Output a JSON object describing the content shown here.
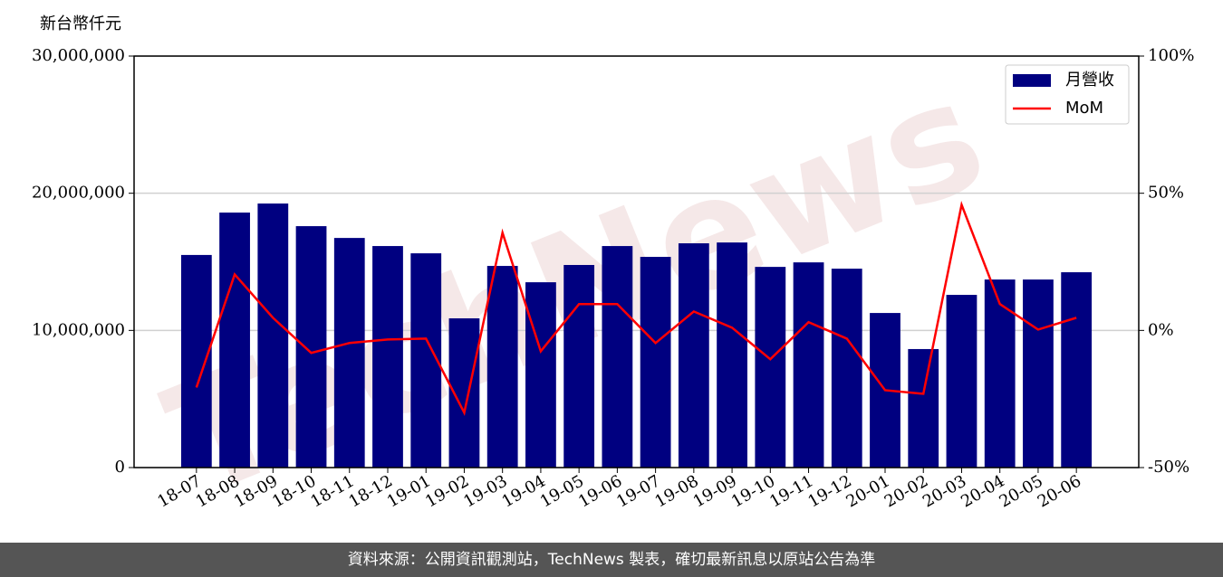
{
  "chart_data": {
    "type": "bar_line",
    "y_axis_label": "新台幣仟元",
    "watermark": "TechNews",
    "footer": "資料來源：公開資訊觀測站，TechNews 製表，確切最新訊息以原站公告為準",
    "categories": [
      "18-07",
      "18-08",
      "18-09",
      "18-10",
      "18-11",
      "18-12",
      "19-01",
      "19-02",
      "19-03",
      "19-04",
      "19-05",
      "19-06",
      "19-07",
      "19-08",
      "19-09",
      "19-10",
      "19-11",
      "19-12",
      "20-01",
      "20-02",
      "20-03",
      "20-04",
      "20-05",
      "20-06"
    ],
    "series": [
      {
        "name": "月營收",
        "type": "bar",
        "color": "#000080",
        "values": [
          15500000,
          18590000,
          19250000,
          17600000,
          16740000,
          16150000,
          15620000,
          10880000,
          14700000,
          13510000,
          14770000,
          16150000,
          15360000,
          16350000,
          16410000,
          14630000,
          14960000,
          14500000,
          11270000,
          8640000,
          12590000,
          13710000,
          13710000,
          14240000
        ]
      },
      {
        "name": "MoM",
        "type": "line",
        "axis": "y2",
        "color": "#ff0000",
        "values": [
          -20.8,
          20.4,
          4.6,
          -8.2,
          -4.6,
          -3.3,
          -3.0,
          -30.0,
          35.6,
          -7.6,
          9.6,
          9.6,
          -4.6,
          6.9,
          1.0,
          -10.5,
          3.0,
          -3.0,
          -21.8,
          -23.1,
          45.8,
          9.6,
          0.3,
          4.6
        ]
      }
    ],
    "ylim": [
      0,
      30000000
    ],
    "yticks": [
      0,
      {
        "value": 10000000,
        "label": "10,000,000"
      },
      {
        "value": 20000000,
        "label": "20,000,000"
      },
      {
        "value": 30000000,
        "label": "30,000,000"
      }
    ],
    "y2lim": [
      -50,
      100
    ],
    "y2ticks": [
      {
        "value": -50,
        "label": "-50%"
      },
      {
        "value": 0,
        "label": "0%"
      },
      {
        "value": 50,
        "label": "50%"
      },
      {
        "value": 100,
        "label": "100%"
      }
    ],
    "grid": true,
    "legend": "upper right"
  }
}
